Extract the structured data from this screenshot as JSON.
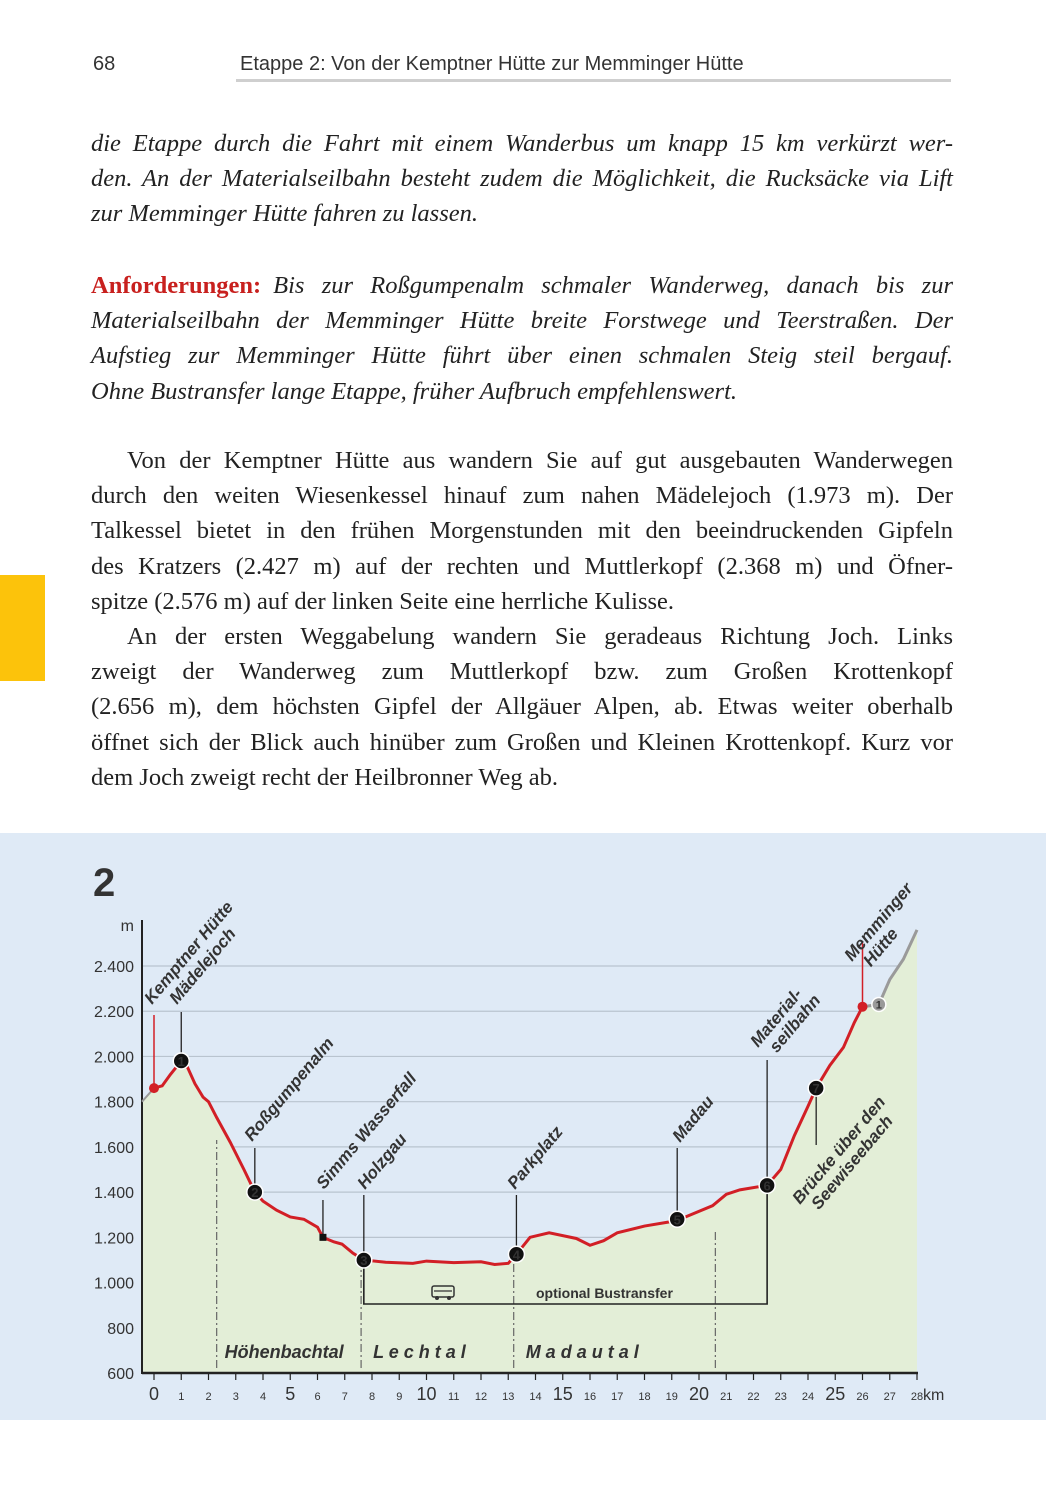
{
  "header": {
    "page_number": "68",
    "title": "Etappe 2: Von der Kemptner Hütte zur Memminger Hütte"
  },
  "paragraph1": {
    "lines": [
      "die Etappe durch die Fahrt mit einem Wanderbus um knapp 15 km verkürzt wer-",
      "den. An der Materialseilbahn besteht zudem die Möglichkeit, die Rucksäcke via Lift",
      "zur Memminger Hütte fahren zu lassen."
    ]
  },
  "requirements": {
    "label": "Anforderungen:",
    "lines": [
      "Bis zur Roßgumpenalm schmaler Wanderweg, danach bis zur",
      "Materialseilbahn der Memminger Hütte breite Forstwege und Teerstraßen. Der",
      "Aufstieg zur Memminger Hütte führt über einen schmalen Steig steil bergauf.",
      "Ohne Bustransfer lange Etappe, früher Aufbruch empfehlenswert."
    ]
  },
  "body": {
    "lines": [
      "Von der Kemptner Hütte aus wandern Sie auf gut ausgebauten Wanderwegen",
      "durch den weiten Wiesenkessel hinauf zum nahen Mädelejoch (1.973 m). Der",
      "Talkessel bietet in den frühen Morgenstunden mit den beeindruckenden Gipfeln",
      "des Kratzers (2.427 m) auf der rechten und Muttlerkopf (2.368 m) und Öfner-",
      "spitze (2.576 m) auf der linken Seite eine herrliche Kulisse.",
      "An der ersten Weggabelung wandern Sie geradeaus Richtung Joch. Links",
      "zweigt der Wanderweg zum Muttlerkopf bzw. zum Großen Krottenkopf",
      "(2.656 m), dem höchsten Gipfel der Allgäuer Alpen, ab. Etwas weiter oberhalb",
      "öffnet sich der Blick auch hinüber zum Großen und Kleinen Krottenkopf. Kurz vor",
      "dem Joch zweigt recht der Heilbronner Weg ab."
    ]
  },
  "accent_color": "#fcc30b",
  "chart_data": {
    "type": "area",
    "title": "2",
    "ylabel": "m",
    "xlabel": "km",
    "xlim": [
      0,
      28
    ],
    "ylim": [
      600,
      2600
    ],
    "yticks": [
      "600",
      "800",
      "1.000",
      "1.200",
      "1.400",
      "1.600",
      "1.800",
      "2.000",
      "2.200",
      "2.400"
    ],
    "ytick_values": [
      600,
      800,
      1000,
      1200,
      1400,
      1600,
      1800,
      2000,
      2200,
      2400
    ],
    "xticks": [
      "0",
      "1",
      "2",
      "3",
      "4",
      "5",
      "6",
      "7",
      "8",
      "9",
      "10",
      "11",
      "12",
      "13",
      "14",
      "15",
      "16",
      "17",
      "18",
      "19",
      "20",
      "21",
      "22",
      "23",
      "24",
      "25",
      "26",
      "27",
      "28"
    ],
    "grid": true,
    "colors": {
      "route": "#d21f26",
      "continuation": "#9a9a9a",
      "fill": "#e3eed7",
      "background": "#dfeaf6"
    },
    "profile_route": [
      [
        -0.45,
        1800
      ],
      [
        0,
        1860
      ],
      [
        0.3,
        1870
      ],
      [
        0.6,
        1920
      ],
      [
        1,
        1980
      ],
      [
        1.2,
        1960
      ],
      [
        1.5,
        1880
      ],
      [
        1.8,
        1820
      ],
      [
        2.0,
        1800
      ],
      [
        2.3,
        1730
      ],
      [
        2.8,
        1620
      ],
      [
        3.3,
        1500
      ],
      [
        3.7,
        1400
      ],
      [
        4.0,
        1360
      ],
      [
        4.5,
        1320
      ],
      [
        5.0,
        1290
      ],
      [
        5.5,
        1280
      ],
      [
        6.0,
        1245
      ],
      [
        6.2,
        1200
      ],
      [
        6.6,
        1180
      ],
      [
        6.9,
        1170
      ],
      [
        7.3,
        1130
      ],
      [
        7.7,
        1100
      ],
      [
        8.5,
        1090
      ],
      [
        9.5,
        1085
      ],
      [
        10,
        1095
      ],
      [
        11,
        1088
      ],
      [
        12,
        1092
      ],
      [
        12.5,
        1080
      ],
      [
        13,
        1085
      ],
      [
        13.3,
        1125
      ],
      [
        13.8,
        1200
      ],
      [
        14.5,
        1220
      ],
      [
        15.5,
        1195
      ],
      [
        16,
        1165
      ],
      [
        16.5,
        1185
      ],
      [
        17,
        1220
      ],
      [
        18,
        1250
      ],
      [
        19,
        1270
      ],
      [
        19.5,
        1290
      ],
      [
        20.5,
        1340
      ],
      [
        21,
        1390
      ],
      [
        21.5,
        1410
      ],
      [
        22.5,
        1430
      ],
      [
        23,
        1500
      ],
      [
        23.5,
        1650
      ],
      [
        24,
        1780
      ],
      [
        24.3,
        1860
      ],
      [
        24.8,
        1960
      ],
      [
        25.3,
        2040
      ],
      [
        25.7,
        2150
      ],
      [
        26,
        2220
      ]
    ],
    "profile_continuation": [
      [
        26,
        2220
      ],
      [
        26.6,
        2230
      ],
      [
        27,
        2340
      ],
      [
        27.5,
        2430
      ],
      [
        28,
        2560
      ]
    ],
    "waypoints": [
      {
        "number": "1",
        "km": 1.0,
        "m": 1980,
        "label": "Mädelejoch"
      },
      {
        "number": "2",
        "km": 3.7,
        "m": 1400,
        "label": "Roßgumpenalm"
      },
      {
        "number": "",
        "km": 6.2,
        "m": 1200,
        "label": "Simms Wasserfall"
      },
      {
        "number": "3",
        "km": 7.7,
        "m": 1100,
        "label": "Holzgau"
      },
      {
        "number": "4",
        "km": 13.3,
        "m": 1125,
        "label": "Parkplatz"
      },
      {
        "number": "5",
        "km": 19.2,
        "m": 1280,
        "label": "Madau"
      },
      {
        "number": "6",
        "km": 22.5,
        "m": 1430,
        "label": "Material-\nseilbahn"
      },
      {
        "number": "7",
        "km": 24.3,
        "m": 1860,
        "label": "Brücke über den\nSeewiseebach"
      }
    ],
    "endpoints": [
      {
        "km": 0,
        "m": 1860,
        "label": "Kemptner Hütte"
      },
      {
        "km": 26,
        "m": 2220,
        "label": "Memminger\nHütte"
      }
    ],
    "next_stage_marker": {
      "number": "1",
      "km": 26.6,
      "m": 2230
    },
    "regions": [
      {
        "label": "Höhenbachtal",
        "from_km": 2.3,
        "to_km": 7.6
      },
      {
        "label": "L e c h t a l",
        "from_km": 7.6,
        "to_km": 13.2
      },
      {
        "label": "M a d a u t a l",
        "from_km": 13.2,
        "to_km": 20.6
      }
    ],
    "bus_transfer": {
      "label": "optional Bustransfer",
      "from_km": 7.7,
      "to_km": 22.5,
      "icon": "bus-icon"
    }
  }
}
